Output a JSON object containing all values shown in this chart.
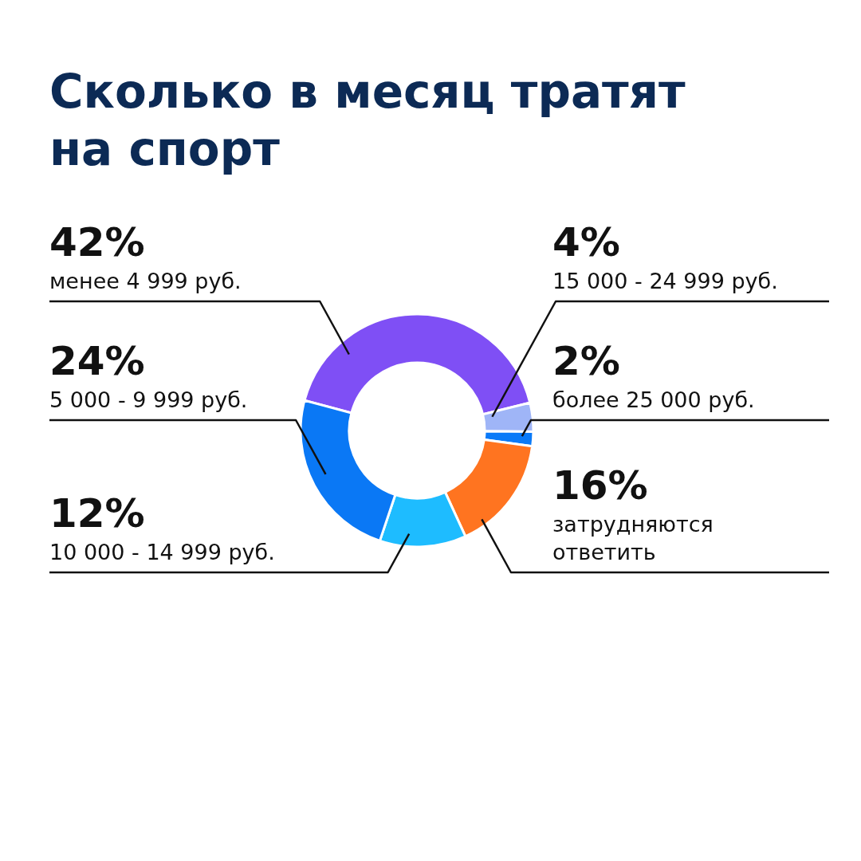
{
  "chart_data": {
    "type": "donut",
    "title": "Сколько в месяц тратят на спорт",
    "categories": [
      "менее 4 999 руб.",
      "15 000 - 24 999 руб.",
      "более 25 000 руб.",
      "затрудняются ответить",
      "10 000 - 14 999 руб.",
      "5 000 - 9 999 руб."
    ],
    "values": [
      42,
      4,
      2,
      16,
      12,
      24
    ],
    "colors": [
      "#7f4ff5",
      "#9fb5f7",
      "#0a7af8",
      "#ff7420",
      "#1ebcff",
      "#0a78f5"
    ],
    "value_labels": [
      "42%",
      "4%",
      "2%",
      "16%",
      "12%",
      "24%"
    ]
  }
}
